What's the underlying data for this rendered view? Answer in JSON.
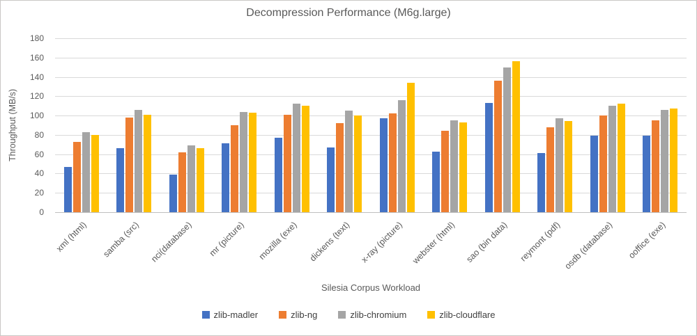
{
  "title": "Decompression Performance (M6g.large)",
  "colors": {
    "series_blue": "#4472C4",
    "series_orange": "#ED7D31",
    "series_gray": "#A5A5A5",
    "series_yellow": "#FFC000",
    "gridline": "#D9D9D9",
    "axis_line": "#BFBFBF",
    "title_text": "#595959",
    "axis_text": "#595959",
    "legend_text": "#404040"
  },
  "y_axis": {
    "label": "Throughput (MB/s)",
    "ticks": [
      0,
      20,
      40,
      60,
      80,
      100,
      120,
      140,
      160,
      180
    ],
    "max": 180
  },
  "x_axis": {
    "label": "Silesia Corpus Workload"
  },
  "legend": [
    "zlib-madler",
    "zlib-ng",
    "zlib-chromium",
    "zlib-cloudflare"
  ],
  "chart_data": {
    "type": "bar",
    "title": "Decompression Performance (M6g.large)",
    "xlabel": "Silesia Corpus Workload",
    "ylabel": "Throughput (MB/s)",
    "ylim": [
      0,
      180
    ],
    "grid": true,
    "legend_position": "bottom",
    "categories": [
      "xml (html)",
      "samba (src)",
      "nci(database)",
      "mr (picture)",
      "mozilla (exe)",
      "dickens (text)",
      "x-ray (picture)",
      "webster (html)",
      "sao (bin data)",
      "reymont (pdf)",
      "osdb (database)",
      "ooffice (exe)"
    ],
    "series": [
      {
        "name": "zlib-madler",
        "color": "#4472C4",
        "values": [
          47,
          66,
          39,
          71,
          77,
          67,
          97,
          63,
          113,
          61,
          79,
          79
        ]
      },
      {
        "name": "zlib-ng",
        "color": "#ED7D31",
        "values": [
          73,
          98,
          62,
          90,
          101,
          92,
          102,
          84,
          136,
          88,
          100,
          95
        ]
      },
      {
        "name": "zlib-chromium",
        "color": "#A5A5A5",
        "values": [
          83,
          106,
          69,
          104,
          112,
          105,
          116,
          95,
          150,
          97,
          110,
          106
        ]
      },
      {
        "name": "zlib-cloudflare",
        "color": "#FFC000",
        "values": [
          80,
          101,
          66,
          103,
          110,
          100,
          134,
          93,
          156,
          94,
          112,
          107
        ]
      }
    ]
  }
}
